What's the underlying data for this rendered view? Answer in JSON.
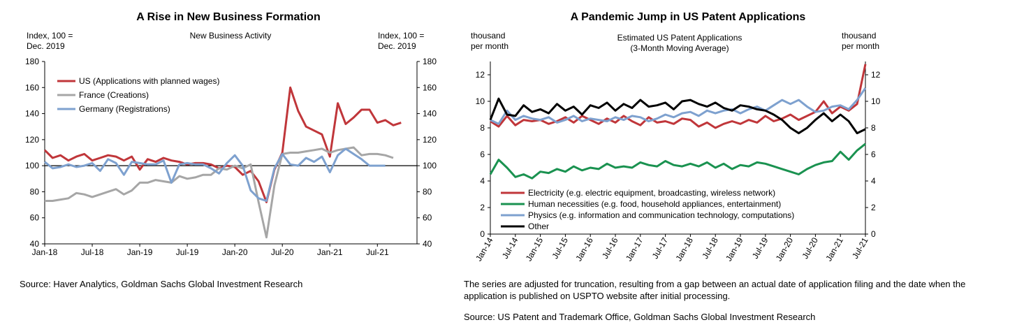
{
  "colors": {
    "red": "#c0363a",
    "gray": "#a6a6a6",
    "blue": "#7ea1cf",
    "green": "#1a9250",
    "black": "#000000"
  },
  "left": {
    "title": "A Rise in New Business Formation",
    "source": "Source: Haver Analytics, Goldman Sachs Global Investment Research"
  },
  "right": {
    "title": "A Pandemic Jump in US Patent Applications",
    "note": "The series are adjusted for truncation, resulting from a gap between an actual date of application filing and the date when the application is published on USPTO website after initial processing.",
    "source": "Source: US Patent and Trademark Office, Goldman Sachs Global Investment Research"
  },
  "chart_data": [
    {
      "type": "line",
      "title": "New Business Activity",
      "ylabel_left": [
        "Index, 100 =",
        "Dec. 2019"
      ],
      "ylabel_right": [
        "Index, 100 =",
        "Dec. 2019"
      ],
      "ylim": [
        40,
        180
      ],
      "yticks": [
        40,
        60,
        80,
        100,
        120,
        140,
        160,
        180
      ],
      "reference_line": 100,
      "xlim": [
        "2018-01",
        "2021-12"
      ],
      "xticks": [
        "Jan-18",
        "Jul-18",
        "Jan-19",
        "Jul-19",
        "Jan-20",
        "Jul-20",
        "Jan-21",
        "Jul-21"
      ],
      "legend_position": "top-left",
      "grid": false,
      "series": [
        {
          "name": "US (Applications with planned wages)",
          "color": "red",
          "x": [
            "2018-01",
            "2018-02",
            "2018-03",
            "2018-04",
            "2018-05",
            "2018-06",
            "2018-07",
            "2018-08",
            "2018-09",
            "2018-10",
            "2018-11",
            "2018-12",
            "2019-01",
            "2019-02",
            "2019-03",
            "2019-04",
            "2019-05",
            "2019-06",
            "2019-07",
            "2019-08",
            "2019-09",
            "2019-10",
            "2019-11",
            "2019-12",
            "2020-01",
            "2020-02",
            "2020-03",
            "2020-04",
            "2020-05",
            "2020-06",
            "2020-07",
            "2020-08",
            "2020-09",
            "2020-10",
            "2020-11",
            "2020-12",
            "2021-01",
            "2021-02",
            "2021-03",
            "2021-04",
            "2021-05",
            "2021-06",
            "2021-07",
            "2021-08",
            "2021-09",
            "2021-10"
          ],
          "y": [
            112,
            106,
            108,
            104,
            107,
            109,
            104,
            106,
            108,
            107,
            104,
            107,
            97,
            105,
            103,
            106,
            104,
            103,
            101,
            102,
            102,
            101,
            98,
            100,
            99,
            93,
            96,
            88,
            72,
            97,
            110,
            160,
            142,
            130,
            127,
            124,
            107,
            148,
            132,
            137,
            143,
            143,
            133,
            135,
            131,
            133
          ]
        },
        {
          "name": "France (Creations)",
          "color": "gray",
          "x": [
            "2018-01",
            "2018-02",
            "2018-03",
            "2018-04",
            "2018-05",
            "2018-06",
            "2018-07",
            "2018-08",
            "2018-09",
            "2018-10",
            "2018-11",
            "2018-12",
            "2019-01",
            "2019-02",
            "2019-03",
            "2019-04",
            "2019-05",
            "2019-06",
            "2019-07",
            "2019-08",
            "2019-09",
            "2019-10",
            "2019-11",
            "2019-12",
            "2020-01",
            "2020-02",
            "2020-03",
            "2020-04",
            "2020-05",
            "2020-06",
            "2020-07",
            "2020-08",
            "2020-09",
            "2020-10",
            "2020-11",
            "2020-12",
            "2021-01",
            "2021-02",
            "2021-03",
            "2021-04",
            "2021-05",
            "2021-06",
            "2021-07",
            "2021-08",
            "2021-09"
          ],
          "y": [
            73,
            73,
            74,
            75,
            79,
            78,
            76,
            78,
            80,
            82,
            78,
            81,
            87,
            87,
            89,
            88,
            87,
            92,
            90,
            91,
            93,
            93,
            98,
            97,
            100,
            98,
            101,
            72,
            45,
            85,
            109,
            110,
            110,
            111,
            112,
            113,
            110,
            112,
            113,
            114,
            108,
            109,
            109,
            108,
            106
          ]
        },
        {
          "name": "Germany (Registrations)",
          "color": "blue",
          "x": [
            "2018-01",
            "2018-02",
            "2018-03",
            "2018-04",
            "2018-05",
            "2018-06",
            "2018-07",
            "2018-08",
            "2018-09",
            "2018-10",
            "2018-11",
            "2018-12",
            "2019-01",
            "2019-02",
            "2019-03",
            "2019-04",
            "2019-05",
            "2019-06",
            "2019-07",
            "2019-08",
            "2019-09",
            "2019-10",
            "2019-11",
            "2019-12",
            "2020-01",
            "2020-02",
            "2020-03",
            "2020-04",
            "2020-05",
            "2020-06",
            "2020-07",
            "2020-08",
            "2020-09",
            "2020-10",
            "2020-11",
            "2020-12",
            "2021-01",
            "2021-02",
            "2021-03",
            "2021-04",
            "2021-05",
            "2021-06",
            "2021-07",
            "2021-08"
          ],
          "y": [
            103,
            98,
            99,
            101,
            99,
            100,
            102,
            96,
            105,
            102,
            93,
            103,
            102,
            101,
            101,
            104,
            87,
            101,
            102,
            101,
            101,
            98,
            94,
            102,
            108,
            100,
            81,
            75,
            73,
            98,
            109,
            101,
            100,
            106,
            103,
            107,
            95,
            108,
            113,
            109,
            105,
            100,
            100,
            100
          ]
        }
      ]
    },
    {
      "type": "line",
      "title": [
        "Estimated US Patent Applications",
        "(3-Month Moving Average)"
      ],
      "ylabel_left": [
        "thousand",
        "per month"
      ],
      "ylabel_right": [
        "thousand",
        "per month"
      ],
      "ylim": [
        0,
        13
      ],
      "yticks": [
        0,
        2,
        4,
        6,
        8,
        10,
        12
      ],
      "xlim": [
        "2014-01",
        "2021-07"
      ],
      "xticks": [
        "Jan-14",
        "Jul-14",
        "Jan-15",
        "Jul-15",
        "Jan-16",
        "Jul-16",
        "Jan-17",
        "Jul-17",
        "Jan-18",
        "Jul-18",
        "Jan-19",
        "Jul-19",
        "Jan-20",
        "Jul-20",
        "Jan-21",
        "Jul-21"
      ],
      "legend_position": "bottom-left",
      "grid": false,
      "series": [
        {
          "name": "Electricity (e.g. electric equipment, broadcasting, wireless network)",
          "color": "red",
          "x": [
            "2014-01",
            "2014-03",
            "2014-05",
            "2014-07",
            "2014-09",
            "2014-11",
            "2015-01",
            "2015-03",
            "2015-05",
            "2015-07",
            "2015-09",
            "2015-11",
            "2016-01",
            "2016-03",
            "2016-05",
            "2016-07",
            "2016-09",
            "2016-11",
            "2017-01",
            "2017-03",
            "2017-05",
            "2017-07",
            "2017-09",
            "2017-11",
            "2018-01",
            "2018-03",
            "2018-05",
            "2018-07",
            "2018-09",
            "2018-11",
            "2019-01",
            "2019-03",
            "2019-05",
            "2019-07",
            "2019-09",
            "2019-11",
            "2020-01",
            "2020-03",
            "2020-05",
            "2020-07",
            "2020-09",
            "2020-11",
            "2021-01",
            "2021-03",
            "2021-05",
            "2021-07"
          ],
          "y": [
            8.5,
            8.1,
            8.9,
            8.2,
            8.6,
            8.5,
            8.6,
            8.3,
            8.5,
            8.8,
            8.4,
            8.9,
            8.6,
            8.3,
            8.7,
            8.4,
            8.9,
            8.5,
            8.2,
            8.8,
            8.4,
            8.5,
            8.3,
            8.7,
            8.6,
            8.1,
            8.4,
            8.0,
            8.3,
            8.5,
            8.3,
            8.6,
            8.4,
            8.9,
            8.5,
            8.7,
            9.0,
            8.6,
            8.9,
            9.2,
            10.0,
            9.1,
            9.6,
            9.3,
            9.8,
            12.8
          ]
        },
        {
          "name": "Human necessities (e.g. food, household appliances, entertainment)",
          "color": "green",
          "x": [
            "2014-01",
            "2014-03",
            "2014-05",
            "2014-07",
            "2014-09",
            "2014-11",
            "2015-01",
            "2015-03",
            "2015-05",
            "2015-07",
            "2015-09",
            "2015-11",
            "2016-01",
            "2016-03",
            "2016-05",
            "2016-07",
            "2016-09",
            "2016-11",
            "2017-01",
            "2017-03",
            "2017-05",
            "2017-07",
            "2017-09",
            "2017-11",
            "2018-01",
            "2018-03",
            "2018-05",
            "2018-07",
            "2018-09",
            "2018-11",
            "2019-01",
            "2019-03",
            "2019-05",
            "2019-07",
            "2019-09",
            "2019-11",
            "2020-01",
            "2020-03",
            "2020-05",
            "2020-07",
            "2020-09",
            "2020-11",
            "2021-01",
            "2021-03",
            "2021-05",
            "2021-07"
          ],
          "y": [
            4.5,
            5.6,
            5.0,
            4.3,
            4.5,
            4.2,
            4.7,
            4.6,
            4.9,
            4.7,
            5.1,
            4.8,
            5.0,
            4.9,
            5.3,
            5.0,
            5.1,
            5.0,
            5.4,
            5.2,
            5.1,
            5.5,
            5.2,
            5.1,
            5.3,
            5.1,
            5.4,
            5.0,
            5.3,
            4.9,
            5.2,
            5.1,
            5.4,
            5.3,
            5.1,
            4.9,
            4.7,
            4.5,
            4.9,
            5.2,
            5.4,
            5.5,
            6.2,
            5.6,
            6.3,
            6.8
          ]
        },
        {
          "name": "Physics (e.g. information and communication technology, computations)",
          "color": "blue",
          "x": [
            "2014-01",
            "2014-03",
            "2014-05",
            "2014-07",
            "2014-09",
            "2014-11",
            "2015-01",
            "2015-03",
            "2015-05",
            "2015-07",
            "2015-09",
            "2015-11",
            "2016-01",
            "2016-03",
            "2016-05",
            "2016-07",
            "2016-09",
            "2016-11",
            "2017-01",
            "2017-03",
            "2017-05",
            "2017-07",
            "2017-09",
            "2017-11",
            "2018-01",
            "2018-03",
            "2018-05",
            "2018-07",
            "2018-09",
            "2018-11",
            "2019-01",
            "2019-03",
            "2019-05",
            "2019-07",
            "2019-09",
            "2019-11",
            "2020-01",
            "2020-03",
            "2020-05",
            "2020-07",
            "2020-09",
            "2020-11",
            "2021-01",
            "2021-03",
            "2021-05",
            "2021-07"
          ],
          "y": [
            8.6,
            8.3,
            9.3,
            8.6,
            8.9,
            8.7,
            8.6,
            8.8,
            8.4,
            8.6,
            8.9,
            8.5,
            8.7,
            8.6,
            8.5,
            8.8,
            8.6,
            8.9,
            8.8,
            8.5,
            8.7,
            9.0,
            8.8,
            9.1,
            9.2,
            8.9,
            9.3,
            9.1,
            9.3,
            9.4,
            9.1,
            9.4,
            9.6,
            9.3,
            9.7,
            10.1,
            9.8,
            10.1,
            9.6,
            9.2,
            9.3,
            9.6,
            9.7,
            9.4,
            10.1,
            11.0
          ]
        },
        {
          "name": "Other",
          "color": "black",
          "x": [
            "2014-01",
            "2014-03",
            "2014-05",
            "2014-07",
            "2014-09",
            "2014-11",
            "2015-01",
            "2015-03",
            "2015-05",
            "2015-07",
            "2015-09",
            "2015-11",
            "2016-01",
            "2016-03",
            "2016-05",
            "2016-07",
            "2016-09",
            "2016-11",
            "2017-01",
            "2017-03",
            "2017-05",
            "2017-07",
            "2017-09",
            "2017-11",
            "2018-01",
            "2018-03",
            "2018-05",
            "2018-07",
            "2018-09",
            "2018-11",
            "2019-01",
            "2019-03",
            "2019-05",
            "2019-07",
            "2019-09",
            "2019-11",
            "2020-01",
            "2020-03",
            "2020-05",
            "2020-07",
            "2020-09",
            "2020-11",
            "2021-01",
            "2021-03",
            "2021-05",
            "2021-07"
          ],
          "y": [
            8.6,
            10.2,
            9.0,
            8.9,
            9.7,
            9.2,
            9.4,
            9.1,
            9.8,
            9.3,
            9.6,
            9.0,
            9.7,
            9.5,
            9.9,
            9.3,
            9.8,
            9.5,
            10.1,
            9.6,
            9.7,
            9.9,
            9.4,
            10.0,
            10.1,
            9.8,
            9.6,
            9.9,
            9.5,
            9.3,
            9.7,
            9.6,
            9.4,
            9.3,
            9.0,
            8.6,
            8.0,
            7.6,
            8.0,
            8.6,
            9.1,
            8.5,
            9.0,
            8.5,
            7.6,
            7.9
          ]
        }
      ]
    }
  ]
}
